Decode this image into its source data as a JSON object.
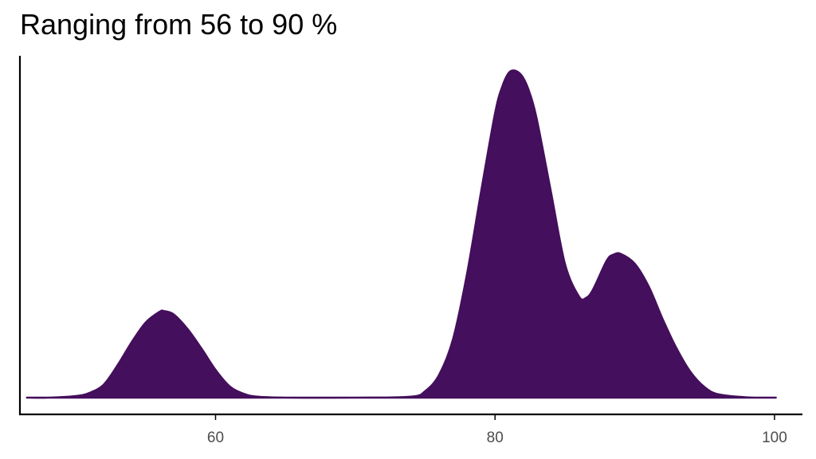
{
  "chart_data": {
    "type": "area",
    "title": "Ranging from 56 to 90 %",
    "xlabel": "",
    "ylabel": "",
    "xlim": [
      46,
      102
    ],
    "ylim": [
      0,
      1
    ],
    "x_ticks": [
      60,
      80,
      100
    ],
    "y_ticks": [],
    "grid": false,
    "legend": "none",
    "fill_color": "#440f5c",
    "series": [
      {
        "x": [
          46.5,
          48,
          50,
          51,
          52,
          53,
          54,
          55,
          56,
          56.3,
          57,
          58,
          59,
          60,
          61,
          62,
          63,
          65,
          70,
          74,
          75,
          76,
          77,
          78,
          79,
          80,
          80.5,
          81,
          81.5,
          82,
          82.5,
          83,
          84,
          85,
          86,
          86.5,
          87,
          88,
          88.5,
          89,
          90,
          91,
          92,
          93,
          94,
          95,
          96,
          98,
          100.1
        ],
        "y": [
          0.0,
          0.0,
          0.005,
          0.015,
          0.04,
          0.1,
          0.17,
          0.23,
          0.263,
          0.265,
          0.255,
          0.21,
          0.15,
          0.085,
          0.035,
          0.012,
          0.003,
          0.0,
          0.0,
          0.003,
          0.02,
          0.07,
          0.18,
          0.38,
          0.63,
          0.87,
          0.95,
          0.995,
          1.0,
          0.98,
          0.93,
          0.85,
          0.63,
          0.41,
          0.31,
          0.305,
          0.33,
          0.42,
          0.438,
          0.44,
          0.41,
          0.34,
          0.24,
          0.15,
          0.078,
          0.032,
          0.01,
          0.001,
          0.0
        ]
      }
    ]
  }
}
